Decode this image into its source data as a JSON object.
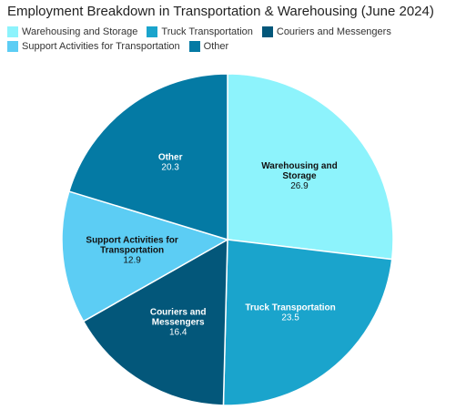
{
  "chart_data": {
    "type": "pie",
    "title": "Employment Breakdown in Transportation & Warehousing (June 2024)",
    "categories": [
      "Warehousing and Storage",
      "Truck Transportation",
      "Couriers and Messengers",
      "Support Activities for Transportation",
      "Other"
    ],
    "values": [
      26.9,
      23.5,
      16.4,
      12.9,
      20.3
    ],
    "slice_labels": [
      [
        "Warehousing and",
        "Storage"
      ],
      [
        "Truck Transportation"
      ],
      [
        "Couriers and",
        "Messengers"
      ],
      [
        "Support Activities for",
        "Transportation"
      ],
      [
        "Other"
      ]
    ],
    "value_labels": [
      "26.9",
      "23.5",
      "16.4",
      "12.9",
      "20.3"
    ],
    "colors": [
      "#8df3fc",
      "#1aa4cc",
      "#03577a",
      "#5ccdf4",
      "#047aa4"
    ],
    "label_text_colors": [
      "#111111",
      "#ffffff",
      "#ffffff",
      "#111111",
      "#ffffff"
    ],
    "legend_placement": "top",
    "start_angle_deg": 0,
    "direction": "clockwise"
  }
}
